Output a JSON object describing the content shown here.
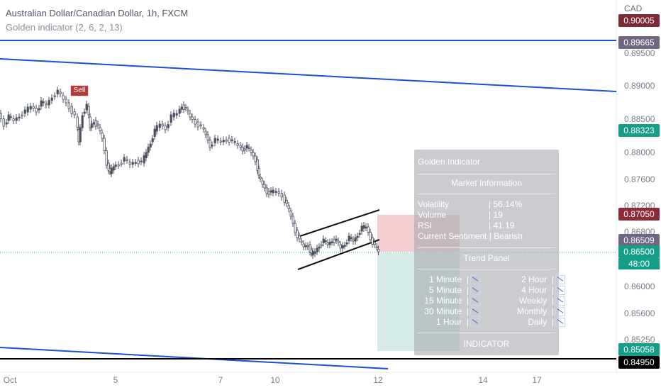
{
  "header": {
    "title": "Australian Dollar/Canadian Dollar, 1h, FXCM",
    "indicator": "Golden indicator (2, 6, 2, 13)"
  },
  "currency": "CAD",
  "price_axis": {
    "ticks": [
      "0.89500",
      "0.89000",
      "0.88500",
      "0.88000",
      "0.87600",
      "0.87200",
      "0.86800",
      "0.86400",
      "0.86000",
      "0.85600",
      "0.85250"
    ]
  },
  "price_badges": [
    {
      "value": "0.90005",
      "color": "#7a2b33"
    },
    {
      "value": "0.89665",
      "color": "#6f6782"
    },
    {
      "value": "0.88323",
      "color": "#149e88"
    },
    {
      "value": "0.87050",
      "color": "#8a2b37"
    },
    {
      "value": "0.86509",
      "color": "#6f6782"
    },
    {
      "value": "0.86500",
      "color": "#149e88"
    },
    {
      "value": "0.85058",
      "color": "#149e88"
    },
    {
      "value": "0.84950",
      "color": "#000000"
    }
  ],
  "countdown": "48:00",
  "time_axis": {
    "ticks": [
      "Oct",
      "5",
      "7",
      "10",
      "12",
      "14",
      "17"
    ]
  },
  "sell_label": "Sell",
  "panel": {
    "title": "Golden Indicator",
    "market_header": "Market Information",
    "metrics": [
      {
        "label": "Volatility",
        "value": "56.14%"
      },
      {
        "label": "Volume",
        "value": "19"
      },
      {
        "label": "RSI",
        "value": "41.19"
      },
      {
        "label": "Current Sentiment",
        "value": "Bearish"
      }
    ],
    "trend_header": "Trend Panel",
    "trend_left": [
      "1 Minute",
      "5 Minute",
      "15 Minute",
      "30 Minute",
      "1 Hour"
    ],
    "trend_right": [
      "2 Hour",
      "4 Hour",
      "Weekly",
      "Monthly",
      "Daily"
    ],
    "trend_icon": "bearish-trend-icon",
    "footer": "INDICATOR"
  },
  "colors": {
    "up": "#26a69a",
    "down": "#ef5350",
    "candle": "#4a4f5c",
    "trendline": "#1f4fd1"
  }
}
